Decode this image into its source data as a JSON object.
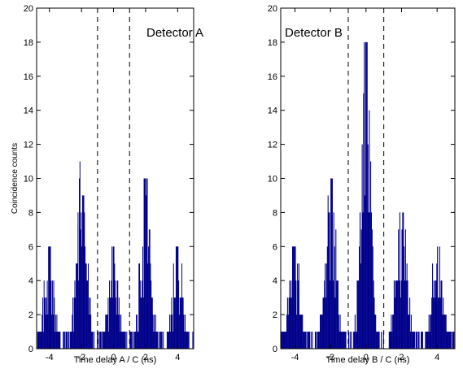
{
  "chart_data": [
    {
      "type": "bar",
      "annotation": "Detector A",
      "xlabel": "Time delay A / C (ns)",
      "ylabel": "Coincidence counts",
      "xlim": [
        -4.8,
        5.0
      ],
      "ylim": [
        0,
        20
      ],
      "xticks": [
        -4,
        -2,
        0,
        2,
        4
      ],
      "yticks": [
        0,
        2,
        4,
        6,
        8,
        10,
        12,
        14,
        16,
        18,
        20
      ],
      "vlines": [
        -1,
        1
      ],
      "bin_width": 0.04,
      "bar_color": "#00008b",
      "peaks": [
        {
          "center": -4.0,
          "max_count": 6
        },
        {
          "center": -2.0,
          "max_count": 11
        },
        {
          "center": 0.0,
          "max_count": 6
        },
        {
          "center": 2.0,
          "max_count": 10
        },
        {
          "center": 4.0,
          "max_count": 6
        }
      ]
    },
    {
      "type": "bar",
      "annotation": "Detector B",
      "xlabel": "Time delay B / C (ns)",
      "ylabel": "",
      "xlim": [
        -4.8,
        5.0
      ],
      "ylim": [
        0,
        20
      ],
      "xticks": [
        -4,
        -2,
        0,
        2,
        4
      ],
      "yticks": [
        0,
        2,
        4,
        6,
        8,
        10,
        12,
        14,
        16,
        18,
        20
      ],
      "vlines": [
        -1,
        1
      ],
      "bin_width": 0.04,
      "bar_color": "#00008b",
      "peaks": [
        {
          "center": -4.0,
          "max_count": 6
        },
        {
          "center": -2.0,
          "max_count": 10
        },
        {
          "center": 0.0,
          "max_count": 18
        },
        {
          "center": 2.0,
          "max_count": 8
        },
        {
          "center": 4.0,
          "max_count": 6
        }
      ]
    }
  ]
}
